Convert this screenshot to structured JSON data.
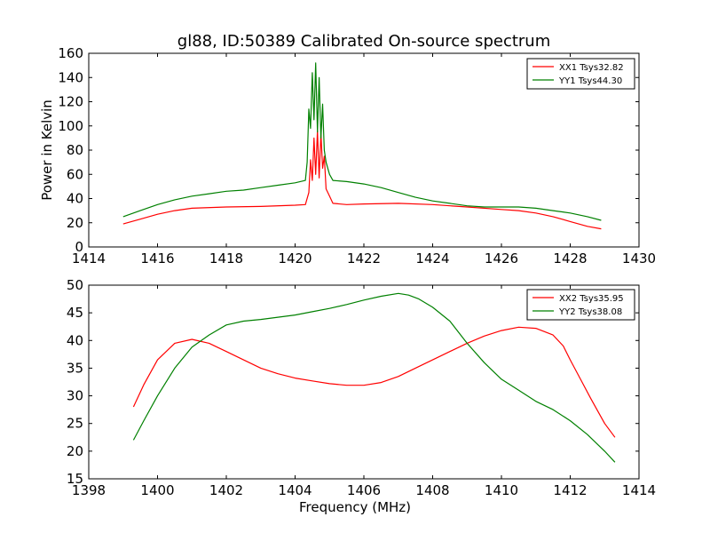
{
  "figure": {
    "title": "gl88, ID:50389 Calibrated On-source spectrum",
    "colors": {
      "red": "#ff0000",
      "green": "#008000",
      "axis": "#000000",
      "background": "#ffffff"
    }
  },
  "chart_data": [
    {
      "type": "line",
      "title": "gl88, ID:50389 Calibrated On-source spectrum",
      "xlabel": "",
      "ylabel": "Power in Kelvin",
      "xlim": [
        1414,
        1430
      ],
      "ylim": [
        0,
        160
      ],
      "xticks": [
        1414,
        1416,
        1418,
        1420,
        1422,
        1424,
        1426,
        1428,
        1430
      ],
      "yticks": [
        0,
        20,
        40,
        60,
        80,
        100,
        120,
        140,
        160
      ],
      "grid": false,
      "legend_position": "top-right",
      "series": [
        {
          "name": "XX1 Tsys32.82",
          "color": "#ff0000",
          "x": [
            1415.0,
            1415.5,
            1416.0,
            1416.5,
            1417.0,
            1418.0,
            1419.0,
            1420.0,
            1420.3,
            1420.4,
            1420.45,
            1420.5,
            1420.55,
            1420.6,
            1420.65,
            1420.7,
            1420.75,
            1420.8,
            1420.85,
            1420.9,
            1421.0,
            1421.1,
            1421.5,
            1422.0,
            1423.0,
            1424.0,
            1425.0,
            1426.0,
            1426.5,
            1427.0,
            1427.5,
            1428.0,
            1428.5,
            1428.9
          ],
          "y": [
            19,
            23,
            27,
            30,
            32,
            33,
            33.5,
            34.5,
            35,
            45,
            72,
            55,
            90,
            60,
            96,
            57,
            94,
            65,
            75,
            48,
            42,
            36,
            35,
            35.5,
            36,
            35,
            33,
            31,
            30,
            28,
            25,
            21,
            17,
            15
          ]
        },
        {
          "name": "YY1 Tsys44.30",
          "color": "#008000",
          "x": [
            1415.0,
            1415.5,
            1416.0,
            1416.5,
            1417.0,
            1417.5,
            1418.0,
            1418.5,
            1419.0,
            1419.5,
            1420.0,
            1420.3,
            1420.35,
            1420.4,
            1420.45,
            1420.5,
            1420.55,
            1420.6,
            1420.65,
            1420.7,
            1420.75,
            1420.8,
            1420.85,
            1420.9,
            1421.0,
            1421.1,
            1421.5,
            1422.0,
            1422.5,
            1423.0,
            1423.5,
            1424.0,
            1424.5,
            1425.0,
            1425.5,
            1426.0,
            1426.5,
            1427.0,
            1427.5,
            1428.0,
            1428.5,
            1428.9
          ],
          "y": [
            25,
            30,
            35,
            39,
            42,
            44,
            46,
            47,
            49,
            51,
            53,
            55,
            70,
            114,
            98,
            144,
            105,
            152,
            95,
            140,
            90,
            118,
            80,
            70,
            60,
            55,
            54,
            52,
            49,
            45,
            41,
            38,
            36,
            34,
            33,
            33,
            33,
            32,
            30,
            28,
            25,
            22
          ]
        }
      ]
    },
    {
      "type": "line",
      "title": "",
      "xlabel": "Frequency (MHz)",
      "ylabel": "",
      "xlim": [
        1398,
        1414
      ],
      "ylim": [
        15,
        50
      ],
      "xticks": [
        1398,
        1400,
        1402,
        1404,
        1406,
        1408,
        1410,
        1412,
        1414
      ],
      "yticks": [
        15,
        20,
        25,
        30,
        35,
        40,
        45,
        50
      ],
      "grid": false,
      "legend_position": "top-right",
      "series": [
        {
          "name": "XX2 Tsys35.95",
          "color": "#ff0000",
          "x": [
            1399.3,
            1399.6,
            1400.0,
            1400.5,
            1401.0,
            1401.5,
            1402.0,
            1402.5,
            1403.0,
            1403.5,
            1404.0,
            1404.5,
            1405.0,
            1405.5,
            1406.0,
            1406.5,
            1407.0,
            1407.5,
            1408.0,
            1408.5,
            1409.0,
            1409.5,
            1410.0,
            1410.5,
            1411.0,
            1411.5,
            1411.8,
            1412.0,
            1412.3,
            1412.6,
            1413.0,
            1413.3
          ],
          "y": [
            28,
            32,
            36.5,
            39.5,
            40.2,
            39.5,
            38,
            36.5,
            35,
            34,
            33.2,
            32.7,
            32.2,
            31.9,
            31.9,
            32.4,
            33.5,
            35,
            36.5,
            38,
            39.5,
            40.8,
            41.8,
            42.4,
            42.2,
            41,
            39,
            36.5,
            33,
            29.5,
            25,
            22.5
          ]
        },
        {
          "name": "YY2 Tsys38.08",
          "color": "#008000",
          "x": [
            1399.3,
            1399.6,
            1400.0,
            1400.5,
            1401.0,
            1401.5,
            1402.0,
            1402.5,
            1403.0,
            1403.5,
            1404.0,
            1404.5,
            1405.0,
            1405.5,
            1406.0,
            1406.5,
            1407.0,
            1407.3,
            1407.6,
            1408.0,
            1408.5,
            1409.0,
            1409.5,
            1410.0,
            1410.5,
            1411.0,
            1411.5,
            1412.0,
            1412.5,
            1413.0,
            1413.3
          ],
          "y": [
            22,
            25.5,
            30,
            35,
            38.8,
            41,
            42.8,
            43.5,
            43.8,
            44.2,
            44.6,
            45.2,
            45.8,
            46.5,
            47.3,
            48,
            48.5,
            48.2,
            47.5,
            46,
            43.5,
            39.5,
            36,
            33,
            31,
            29,
            27.5,
            25.5,
            23,
            20,
            18
          ]
        }
      ]
    }
  ]
}
